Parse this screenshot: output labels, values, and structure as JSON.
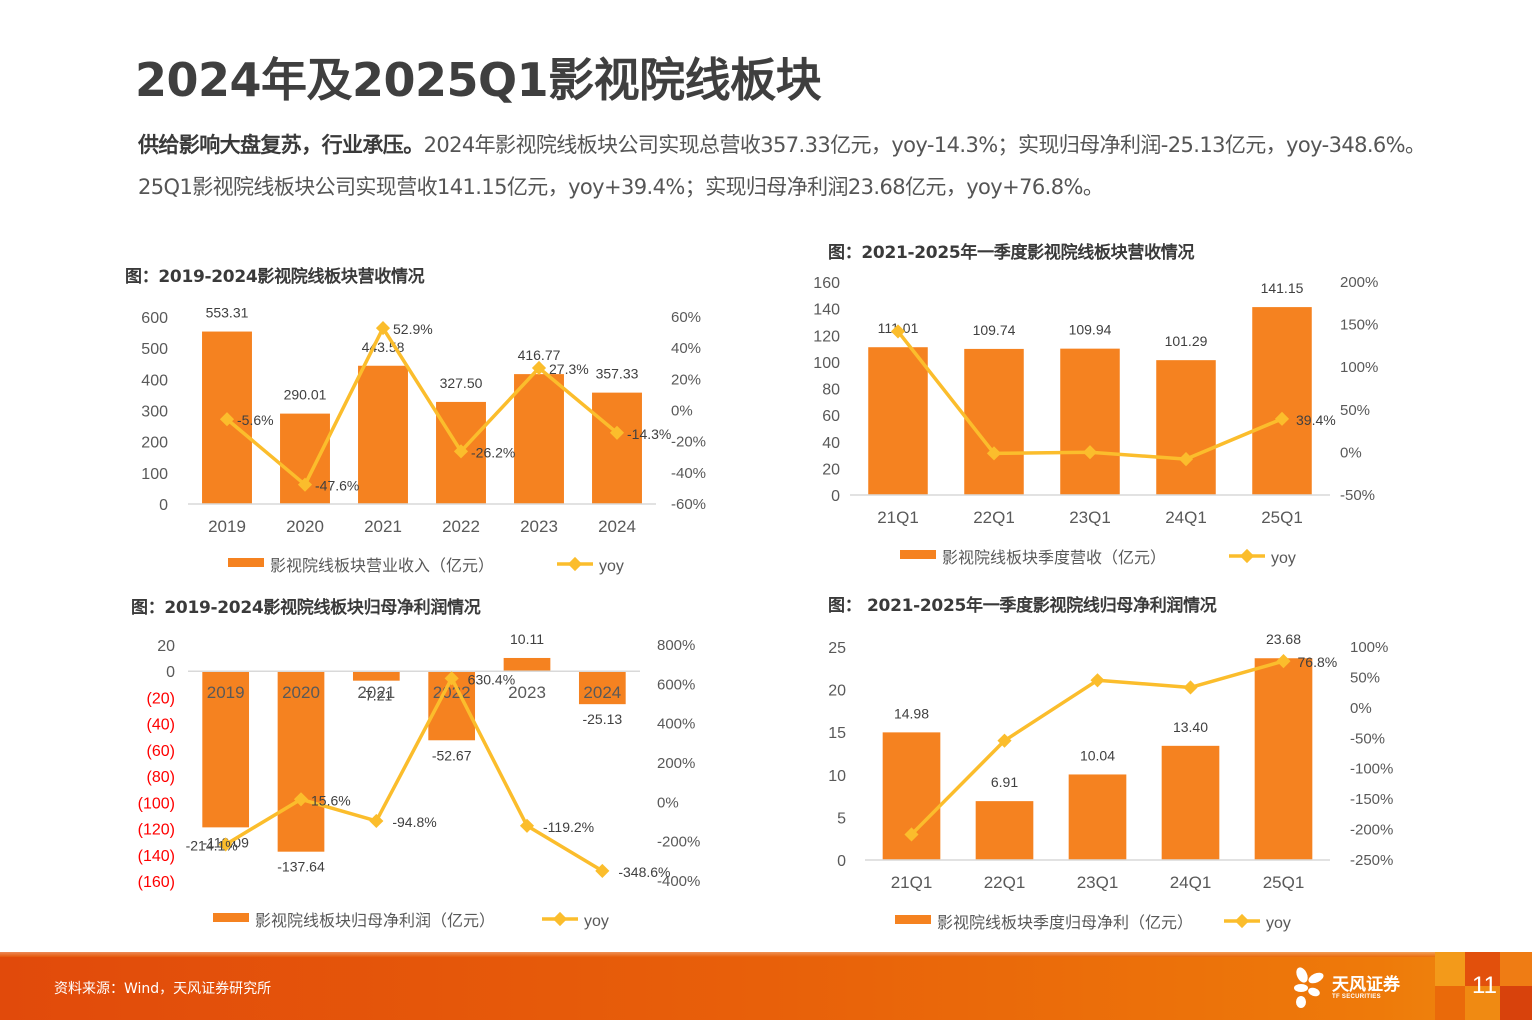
{
  "page": {
    "title": "2024年及2025Q1影视院线板块",
    "paragraph_bold": "供给影响大盘复苏，行业承压。",
    "paragraph_rest": "2024年影视院线板块公司实现总营收357.33亿元，yoy-14.3%；实现归母净利润-25.13亿元，yoy-348.6%。25Q1影视院线板块公司实现营收141.15亿元，yoy+39.4%；实现归母净利润23.68亿元，yoy+76.8%。",
    "footer_source": "资料来源：Wind，天风证券研究所",
    "logo_cn": "天风证券",
    "logo_en": "TF SECURITIES",
    "page_number": "11"
  },
  "colors": {
    "bar": "#f58220",
    "line": "#fbbd2c",
    "axis_text": "#595959",
    "negative_axis_text": "#ff0000",
    "footer": "#e8600a"
  },
  "chart_data": [
    {
      "id": "annual-revenue",
      "type": "bar",
      "title": "图：2019-2024影视院线板块营收情况",
      "categories": [
        "2019",
        "2020",
        "2021",
        "2022",
        "2023",
        "2024"
      ],
      "series": [
        {
          "name": "影视院线板块营业收入（亿元）",
          "type": "bar",
          "axis": "left",
          "values": [
            553.31,
            290.01,
            443.58,
            327.5,
            416.77,
            357.33
          ],
          "labels": [
            "553.31",
            "290.01",
            "443.58",
            "327.50",
            "416.77",
            "357.33"
          ]
        },
        {
          "name": "yoy",
          "type": "line",
          "axis": "right",
          "values": [
            -5.6,
            -47.6,
            52.9,
            -26.2,
            27.3,
            -14.3
          ],
          "labels": [
            "-5.6%",
            "-47.6%",
            "52.9%",
            "-26.2%",
            "27.3%",
            "-14.3%"
          ]
        }
      ],
      "ylim": [
        0,
        600
      ],
      "yticks": [
        0,
        100,
        200,
        300,
        400,
        500,
        600
      ],
      "ytick_labels": [
        "0",
        "100",
        "200",
        "300",
        "400",
        "500",
        "600"
      ],
      "y2lim": [
        -60,
        60
      ],
      "y2ticks": [
        -60,
        -40,
        -20,
        0,
        20,
        40,
        60
      ],
      "y2tick_labels": [
        "-60%",
        "-40%",
        "-20%",
        "0%",
        "20%",
        "40%",
        "60%"
      ],
      "legend": [
        "影视院线板块营业收入（亿元）",
        "yoy"
      ],
      "legend_position": "bottom",
      "grid": false
    },
    {
      "id": "q1-revenue",
      "type": "bar",
      "title": "图：2021-2025年一季度影视院线板块营收情况",
      "categories": [
        "21Q1",
        "22Q1",
        "23Q1",
        "24Q1",
        "25Q1"
      ],
      "series": [
        {
          "name": "影视院线板块季度营收（亿元）",
          "type": "bar",
          "axis": "left",
          "values": [
            111.01,
            109.74,
            109.94,
            101.29,
            141.15
          ],
          "labels": [
            "111.01",
            "109.74",
            "109.94",
            "101.29",
            "141.15"
          ]
        },
        {
          "name": "yoy",
          "type": "line",
          "axis": "right",
          "values": [
            142,
            -1.1,
            0.2,
            -7.9,
            39.4
          ],
          "labels": [
            "",
            "",
            "",
            "",
            "39.4%"
          ]
        }
      ],
      "ylim": [
        0,
        160
      ],
      "yticks": [
        0,
        20,
        40,
        60,
        80,
        100,
        120,
        140,
        160
      ],
      "ytick_labels": [
        "0",
        "20",
        "40",
        "60",
        "80",
        "100",
        "120",
        "140",
        "160"
      ],
      "y2lim": [
        -50,
        200
      ],
      "y2ticks": [
        -50,
        0,
        50,
        100,
        150,
        200
      ],
      "y2tick_labels": [
        "-50%",
        "0%",
        "50%",
        "100%",
        "150%",
        "200%"
      ],
      "legend": [
        "影视院线板块季度营收（亿元）",
        "yoy"
      ],
      "legend_position": "bottom",
      "grid": false
    },
    {
      "id": "annual-profit",
      "type": "bar",
      "title": "图：2019-2024影视院线板块归母净利润情况",
      "categories": [
        "2019",
        "2020",
        "2021",
        "2022",
        "2023",
        "2024"
      ],
      "series": [
        {
          "name": "影视院线板块归母净利润（亿元）",
          "type": "bar",
          "axis": "left",
          "values": [
            -119.09,
            -137.64,
            -7.21,
            -52.67,
            10.11,
            -25.13
          ],
          "labels": [
            "-119.09",
            "-137.64",
            "-7.21",
            "-52.67",
            "10.11",
            "-25.13"
          ]
        },
        {
          "name": "yoy",
          "type": "line",
          "axis": "right",
          "values": [
            -214.1,
            15.6,
            -94.8,
            630.4,
            -119.2,
            -348.6
          ],
          "labels": [
            "-214.1%",
            "15.6%",
            "-94.8%",
            "630.4%",
            "-119.2%",
            "-348.6%"
          ]
        }
      ],
      "ylim": [
        -160,
        20
      ],
      "yticks": [
        20,
        0,
        -20,
        -40,
        -60,
        -80,
        -100,
        -120,
        -140,
        -160
      ],
      "ytick_labels": [
        "20",
        "0",
        "(20)",
        "(40)",
        "(60)",
        "(80)",
        "(100)",
        "(120)",
        "(140)",
        "(160)"
      ],
      "y2lim": [
        -400,
        800
      ],
      "y2ticks": [
        -400,
        -200,
        0,
        200,
        400,
        600,
        800
      ],
      "y2tick_labels": [
        "-400%",
        "-200%",
        "0%",
        "200%",
        "400%",
        "600%",
        "800%"
      ],
      "legend": [
        "影视院线板块归母净利润（亿元）",
        "yoy"
      ],
      "legend_position": "bottom",
      "grid": false
    },
    {
      "id": "q1-profit",
      "type": "bar",
      "title": "图： 2021-2025年一季度影视院线归母净利润情况",
      "categories": [
        "21Q1",
        "22Q1",
        "23Q1",
        "24Q1",
        "25Q1"
      ],
      "series": [
        {
          "name": "影视院线板块季度归母净利（亿元）",
          "type": "bar",
          "axis": "left",
          "values": [
            14.98,
            6.91,
            10.04,
            13.4,
            23.68
          ],
          "labels": [
            "14.98",
            "6.91",
            "10.04",
            "13.40",
            "23.68"
          ]
        },
        {
          "name": "yoy",
          "type": "line",
          "axis": "right",
          "values": [
            -208,
            -53.9,
            45.3,
            33.5,
            76.8
          ],
          "labels": [
            "",
            "",
            "",
            "",
            "76.8%"
          ]
        }
      ],
      "ylim": [
        0,
        25
      ],
      "yticks": [
        0,
        5,
        10,
        15,
        20,
        25
      ],
      "ytick_labels": [
        "0",
        "5",
        "10",
        "15",
        "20",
        "25"
      ],
      "y2lim": [
        -250,
        100
      ],
      "y2ticks": [
        -250,
        -200,
        -150,
        -100,
        -50,
        0,
        50,
        100
      ],
      "y2tick_labels": [
        "-250%",
        "-200%",
        "-150%",
        "-100%",
        "-50%",
        "0%",
        "50%",
        "100%"
      ],
      "legend": [
        "影视院线板块季度归母净利（亿元）",
        "yoy"
      ],
      "legend_position": "bottom",
      "grid": false
    }
  ]
}
